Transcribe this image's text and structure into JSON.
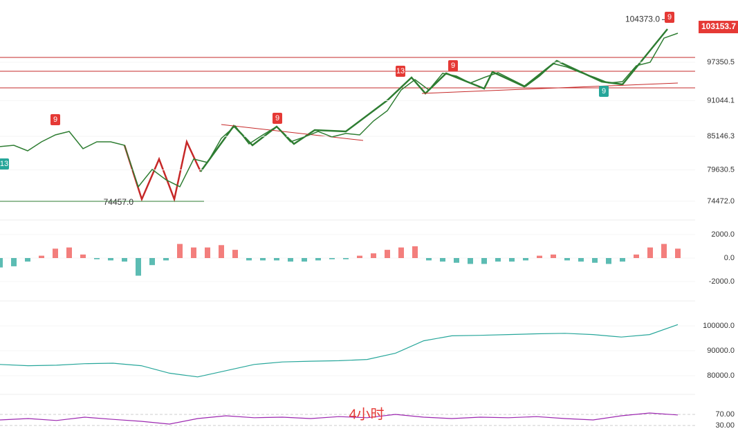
{
  "chart_data": [
    {
      "type": "line",
      "color": "#2e7d32",
      "values": [
        83470,
        83690,
        82780,
        84260,
        85400,
        85970,
        83130,
        84260,
        84260,
        83690,
        76870,
        79710,
        78000,
        76870,
        81420,
        80850,
        84830,
        86880,
        83920,
        85400,
        86770,
        84260,
        85060,
        85970,
        85060,
        85630,
        85400,
        87680,
        89380,
        92800,
        94510,
        92800,
        95530,
        95070,
        93940,
        94850,
        95640,
        94510,
        93370,
        95070,
        97120,
        96550,
        95640,
        94850,
        93940,
        94160,
        96780,
        97350,
        101330,
        102130
      ],
      "ylim": [
        72300,
        107600
      ],
      "yticks": [
        97350.5,
        91044.1,
        85146.3,
        79630.5,
        {
          "value": 74472,
          "label": "74472.0"
        }
      ],
      "low": {
        "value": 74457,
        "label": "74457.0"
      },
      "high": {
        "value": 104373,
        "label": "104373.0"
      },
      "last": 103153.7,
      "annotations": [
        "9",
        "13",
        "9",
        "13",
        "9",
        "9",
        "9"
      ]
    },
    {
      "type": "bar",
      "color": "#26a69a",
      "values": [
        -800,
        -700,
        -300,
        200,
        800,
        900,
        300,
        -100,
        -200,
        -300,
        -1500,
        -600,
        -200,
        1200,
        900,
        900,
        1100,
        700,
        -200,
        -200,
        -200,
        -300,
        -300,
        -200,
        -100,
        -100,
        200,
        400,
        700,
        900,
        1000,
        -200,
        -300,
        -400,
        -500,
        -500,
        -300,
        -300,
        -200,
        200,
        300,
        -200,
        -300,
        -400,
        -500,
        -300,
        300,
        900,
        1200,
        800
      ],
      "ylim": [
        -3353,
        3118
      ],
      "yticks": [
        {
          "value": 2000,
          "label": "2000.0"
        },
        {
          "value": 0,
          "label": "0.0"
        },
        {
          "value": -2000,
          "label": "-2000.0"
        }
      ]
    },
    {
      "type": "line",
      "color": "#26a69a",
      "values": [
        84500,
        84000,
        84200,
        84800,
        85000,
        84000,
        81000,
        79500,
        82000,
        84500,
        85500,
        85800,
        86000,
        86500,
        89000,
        94000,
        96000,
        96200,
        96500,
        96800,
        97000,
        96500,
        95500,
        96500,
        100500
      ],
      "ylim": [
        73890,
        108610
      ],
      "yticks": [
        {
          "value": 100000,
          "label": "100000.0"
        },
        {
          "value": 90000,
          "label": "90000.0"
        },
        {
          "value": 80000,
          "label": "80000.0"
        }
      ]
    },
    {
      "type": "line",
      "color": "#9c27b0",
      "title": "4小时",
      "values": [
        50,
        55,
        48,
        60,
        52,
        45,
        35,
        55,
        65,
        58,
        60,
        55,
        62,
        58,
        70,
        60,
        55,
        60,
        58,
        62,
        55,
        50,
        65,
        75,
        68
      ],
      "ylim": [
        -22.5,
        130
      ],
      "yticks": [
        {
          "value": 70,
          "label": "70.00"
        },
        {
          "value": 30,
          "label": "30.00"
        }
      ]
    }
  ]
}
